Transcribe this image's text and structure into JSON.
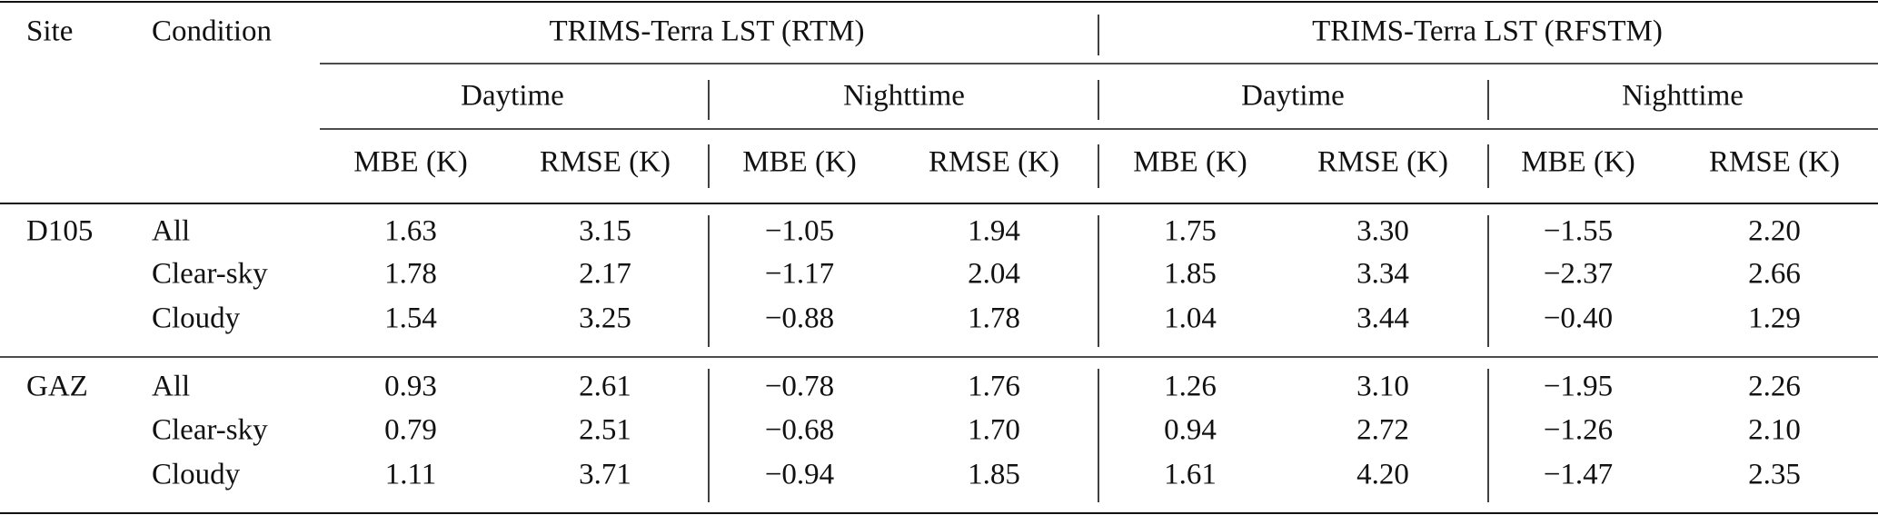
{
  "table": {
    "headers": {
      "site": "Site",
      "condition": "Condition",
      "groups": [
        {
          "label": "TRIMS-Terra LST (RTM)",
          "periods": [
            {
              "label": "Daytime",
              "metrics": [
                "MBE (K)",
                "RMSE (K)"
              ]
            },
            {
              "label": "Nighttime",
              "metrics": [
                "MBE (K)",
                "RMSE (K)"
              ]
            }
          ]
        },
        {
          "label": "TRIMS-Terra LST (RFSTM)",
          "periods": [
            {
              "label": "Daytime",
              "metrics": [
                "MBE (K)",
                "RMSE (K)"
              ]
            },
            {
              "label": "Nighttime",
              "metrics": [
                "MBE (K)",
                "RMSE (K)"
              ]
            }
          ]
        }
      ]
    },
    "sites": [
      {
        "site": "D105",
        "rows": [
          {
            "condition": "All",
            "values": [
              "1.63",
              "3.15",
              "−1.05",
              "1.94",
              "1.75",
              "3.30",
              "−1.55",
              "2.20"
            ]
          },
          {
            "condition": "Clear-sky",
            "values": [
              "1.78",
              "2.17",
              "−1.17",
              "2.04",
              "1.85",
              "3.34",
              "−2.37",
              "2.66"
            ]
          },
          {
            "condition": "Cloudy",
            "values": [
              "1.54",
              "3.25",
              "−0.88",
              "1.78",
              "1.04",
              "3.44",
              "−0.40",
              "1.29"
            ]
          }
        ]
      },
      {
        "site": "GAZ",
        "rows": [
          {
            "condition": "All",
            "values": [
              "0.93",
              "2.61",
              "−0.78",
              "1.76",
              "1.26",
              "3.10",
              "−1.95",
              "2.26"
            ]
          },
          {
            "condition": "Clear-sky",
            "values": [
              "0.79",
              "2.51",
              "−0.68",
              "1.70",
              "0.94",
              "2.72",
              "−1.26",
              "2.10"
            ]
          },
          {
            "condition": "Cloudy",
            "values": [
              "1.11",
              "3.71",
              "−0.94",
              "1.85",
              "1.61",
              "4.20",
              "−1.47",
              "2.35"
            ]
          }
        ]
      }
    ]
  }
}
